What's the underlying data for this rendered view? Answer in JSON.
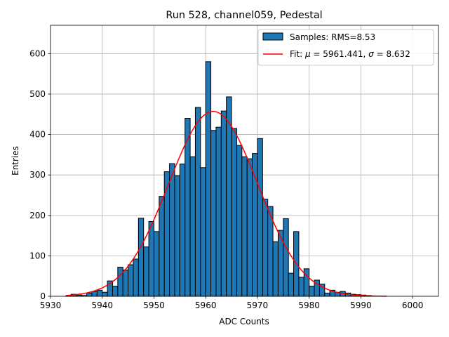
{
  "chart_data": {
    "type": "bar",
    "title": "Run 528, channel059, Pedestal",
    "xlabel": "ADC Counts",
    "ylabel": "Entries",
    "xlim": [
      5930,
      6005
    ],
    "ylim": [
      0,
      670
    ],
    "xticks": [
      5930,
      5940,
      5950,
      5960,
      5970,
      5980,
      5990,
      6000
    ],
    "yticks": [
      0,
      100,
      200,
      300,
      400,
      500,
      600
    ],
    "grid": true,
    "legend_position": "top-right",
    "bar_color": "#1f77b4",
    "bar_edge_color": "#000000",
    "fit_color": "#ff0000",
    "bin_width": 1,
    "bins_start": [
      5933,
      5934,
      5935,
      5936,
      5937,
      5938,
      5939,
      5940,
      5941,
      5942,
      5943,
      5944,
      5945,
      5946,
      5947,
      5948,
      5949,
      5950,
      5951,
      5952,
      5953,
      5954,
      5955,
      5956,
      5957,
      5958,
      5959,
      5960,
      5961,
      5962,
      5963,
      5964,
      5965,
      5966,
      5967,
      5968,
      5969,
      5970,
      5971,
      5972,
      5973,
      5974,
      5975,
      5976,
      5977,
      5978,
      5979,
      5980,
      5981,
      5982,
      5983,
      5984,
      5985,
      5986,
      5987,
      5988,
      5989,
      5990,
      5991
    ],
    "counts": [
      2,
      5,
      3,
      2,
      8,
      12,
      15,
      10,
      38,
      25,
      72,
      65,
      78,
      92,
      193,
      122,
      185,
      160,
      247,
      308,
      328,
      298,
      327,
      440,
      345,
      467,
      318,
      580,
      410,
      418,
      458,
      493,
      415,
      373,
      345,
      340,
      353,
      390,
      240,
      222,
      135,
      163,
      192,
      57,
      160,
      47,
      68,
      25,
      40,
      30,
      8,
      15,
      10,
      12,
      8,
      5,
      4,
      3,
      2
    ],
    "fit": {
      "mu": 5961.441,
      "sigma": 8.632,
      "amplitude": 457,
      "x_range": [
        5933,
        5995
      ]
    },
    "legend": {
      "samples_label": "Samples: RMS=8.53",
      "fit_label_prefix": "Fit: ",
      "mu_symbol": "μ",
      "sigma_symbol": "σ",
      "mu_value": "5961.441",
      "sigma_value": "8.632"
    }
  }
}
